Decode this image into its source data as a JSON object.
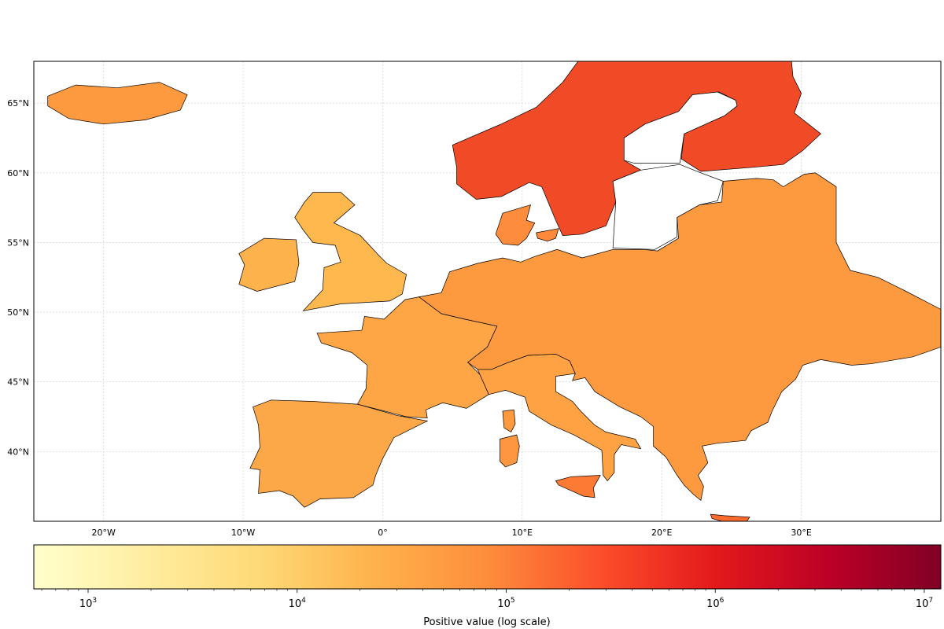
{
  "map": {
    "type": "choropleth-grid",
    "region": "Europe",
    "lon_range": [
      -25,
      40
    ],
    "lat_range": [
      35,
      68
    ],
    "lon_ticks": [
      {
        "value": -20,
        "label": "20°W"
      },
      {
        "value": -10,
        "label": "10°W"
      },
      {
        "value": 0,
        "label": "0°"
      },
      {
        "value": 10,
        "label": "10°E"
      },
      {
        "value": 20,
        "label": "20°E"
      },
      {
        "value": 30,
        "label": "30°E"
      }
    ],
    "lat_ticks": [
      {
        "value": 40,
        "label": "40°N"
      },
      {
        "value": 45,
        "label": "45°N"
      },
      {
        "value": 50,
        "label": "50°N"
      },
      {
        "value": 55,
        "label": "55°N"
      },
      {
        "value": 60,
        "label": "60°N"
      },
      {
        "value": 65,
        "label": "65°N"
      }
    ],
    "grid": true,
    "colormap": "YlOrRd",
    "color_stops": [
      "#ffffcc",
      "#ffeda0",
      "#fed976",
      "#feb24c",
      "#fd8d3c",
      "#fc4e2a",
      "#e31a1c",
      "#bd0026",
      "#800026"
    ]
  },
  "colorbar": {
    "label": "Positive value (log scale)",
    "scale": "log",
    "range": [
      550,
      12000000
    ],
    "ticks": [
      {
        "value": 1000,
        "base": "10",
        "exp": "3"
      },
      {
        "value": 10000,
        "base": "10",
        "exp": "4"
      },
      {
        "value": 100000,
        "base": "10",
        "exp": "5"
      },
      {
        "value": 1000000,
        "base": "10",
        "exp": "6"
      },
      {
        "value": 10000000,
        "base": "10",
        "exp": "7"
      }
    ]
  },
  "regions": [
    {
      "name": "iceland",
      "color": "#fd9a40",
      "outline": [
        [
          -24,
          65.5
        ],
        [
          -22,
          66.3
        ],
        [
          -19,
          66.1
        ],
        [
          -16,
          66.5
        ],
        [
          -14,
          65.6
        ],
        [
          -14.5,
          64.5
        ],
        [
          -17,
          63.8
        ],
        [
          -20,
          63.5
        ],
        [
          -22.5,
          63.9
        ],
        [
          -24,
          64.8
        ]
      ]
    },
    {
      "name": "ireland",
      "color": "#feb24c",
      "outline": [
        [
          -10.3,
          54.2
        ],
        [
          -8.5,
          55.3
        ],
        [
          -6.2,
          55.2
        ],
        [
          -6,
          53.5
        ],
        [
          -6.3,
          52.2
        ],
        [
          -9,
          51.5
        ],
        [
          -10.3,
          52
        ],
        [
          -9.9,
          53.4
        ]
      ]
    },
    {
      "name": "great-britain",
      "color": "#feb84e",
      "outline": [
        [
          -5,
          58.6
        ],
        [
          -3,
          58.6
        ],
        [
          -2,
          57.7
        ],
        [
          -3.5,
          56.4
        ],
        [
          -1.6,
          55.5
        ],
        [
          -0.2,
          54
        ],
        [
          0.3,
          53.5
        ],
        [
          1.7,
          52.7
        ],
        [
          1.4,
          51.3
        ],
        [
          0.5,
          50.8
        ],
        [
          -3,
          50.6
        ],
        [
          -5.7,
          50.1
        ],
        [
          -4.3,
          51.6
        ],
        [
          -4.2,
          53.2
        ],
        [
          -3,
          53.6
        ],
        [
          -3.4,
          54.8
        ],
        [
          -5,
          55
        ],
        [
          -5.7,
          55.9
        ],
        [
          -6.3,
          56.8
        ],
        [
          -5.6,
          57.9
        ]
      ]
    },
    {
      "name": "iberia",
      "color": "#fda848",
      "outline": [
        [
          -9.3,
          43.2
        ],
        [
          -8,
          43.7
        ],
        [
          -5,
          43.6
        ],
        [
          -1.8,
          43.4
        ],
        [
          1,
          42.6
        ],
        [
          3.2,
          42.2
        ],
        [
          0.8,
          41
        ],
        [
          0,
          39.5
        ],
        [
          -0.5,
          38.3
        ],
        [
          -0.7,
          37.6
        ],
        [
          -2.1,
          36.7
        ],
        [
          -4.5,
          36.6
        ],
        [
          -5.6,
          36
        ],
        [
          -6.4,
          36.8
        ],
        [
          -7.4,
          37.2
        ],
        [
          -8.9,
          37
        ],
        [
          -8.8,
          38.7
        ],
        [
          -9.5,
          38.8
        ],
        [
          -8.8,
          40.3
        ],
        [
          -8.9,
          41.9
        ]
      ]
    },
    {
      "name": "france",
      "color": "#fea546",
      "outline": [
        [
          -4.7,
          48.5
        ],
        [
          -1.5,
          48.7
        ],
        [
          -1.3,
          49.7
        ],
        [
          0.1,
          49.5
        ],
        [
          1.6,
          50.9
        ],
        [
          2.6,
          51.1
        ],
        [
          4.2,
          49.9
        ],
        [
          5.9,
          49.5
        ],
        [
          8.2,
          49
        ],
        [
          7.5,
          47.5
        ],
        [
          6.1,
          46.4
        ],
        [
          7,
          45.5
        ],
        [
          7.6,
          44.1
        ],
        [
          6,
          43.1
        ],
        [
          4.3,
          43.5
        ],
        [
          3.1,
          43
        ],
        [
          3.2,
          42.4
        ],
        [
          1.7,
          42.5
        ],
        [
          -1.8,
          43.4
        ],
        [
          -1.2,
          44.5
        ],
        [
          -1.1,
          46.2
        ],
        [
          -2.2,
          47.1
        ],
        [
          -4.4,
          47.8
        ]
      ]
    },
    {
      "name": "italy",
      "color": "#fea243",
      "outline": [
        [
          6.8,
          45.9
        ],
        [
          7.6,
          44.1
        ],
        [
          8.8,
          44.4
        ],
        [
          10.2,
          43.9
        ],
        [
          10.5,
          42.9
        ],
        [
          12.1,
          41.9
        ],
        [
          13.7,
          41.2
        ],
        [
          15.7,
          40.1
        ],
        [
          15.8,
          38.3
        ],
        [
          16.1,
          37.9
        ],
        [
          16.6,
          38.5
        ],
        [
          16.6,
          39.8
        ],
        [
          17.1,
          40.5
        ],
        [
          18.5,
          40.2
        ],
        [
          18.1,
          40.9
        ],
        [
          16,
          41.4
        ],
        [
          15.2,
          41.9
        ],
        [
          14.2,
          42.9
        ],
        [
          13.6,
          43.6
        ],
        [
          12.4,
          44.3
        ],
        [
          12.4,
          45.4
        ],
        [
          13.8,
          45.6
        ],
        [
          13.4,
          46.5
        ],
        [
          12.4,
          47
        ],
        [
          10.4,
          46.9
        ],
        [
          9,
          46.4
        ],
        [
          7.8,
          45.9
        ]
      ]
    },
    {
      "name": "sicily",
      "color": "#fc7a33",
      "outline": [
        [
          12.4,
          37.9
        ],
        [
          13.5,
          38.2
        ],
        [
          15.6,
          38.3
        ],
        [
          15.1,
          37.4
        ],
        [
          15.2,
          36.7
        ],
        [
          14.4,
          36.8
        ],
        [
          12.6,
          37.6
        ]
      ]
    },
    {
      "name": "sardinia",
      "color": "#fd9640",
      "outline": [
        [
          8.4,
          40.9
        ],
        [
          9.6,
          41.2
        ],
        [
          9.8,
          40.4
        ],
        [
          9.6,
          39.2
        ],
        [
          8.8,
          38.9
        ],
        [
          8.4,
          39.3
        ],
        [
          8.4,
          40.3
        ]
      ]
    },
    {
      "name": "corsica",
      "color": "#fd9a40",
      "outline": [
        [
          8.6,
          42.9
        ],
        [
          9.4,
          43
        ],
        [
          9.5,
          42
        ],
        [
          9.2,
          41.4
        ],
        [
          8.7,
          41.7
        ]
      ]
    },
    {
      "name": "central-eastern-europe",
      "color": "#fd9a40",
      "outline": [
        [
          2.6,
          51.1
        ],
        [
          4.2,
          51.4
        ],
        [
          4.8,
          52.9
        ],
        [
          6.8,
          53.5
        ],
        [
          8.6,
          53.9
        ],
        [
          9.9,
          53.6
        ],
        [
          10.9,
          54
        ],
        [
          12.5,
          54.5
        ],
        [
          14.3,
          53.9
        ],
        [
          16.5,
          54.5
        ],
        [
          18.7,
          54.5
        ],
        [
          19.7,
          54.4
        ],
        [
          21.2,
          55.3
        ],
        [
          21.1,
          56.8
        ],
        [
          22.7,
          57.7
        ],
        [
          24.3,
          57.9
        ],
        [
          24.4,
          59.4
        ],
        [
          26.8,
          59.6
        ],
        [
          28,
          59.5
        ],
        [
          28.7,
          59
        ],
        [
          30.2,
          59.9
        ],
        [
          31,
          60
        ],
        [
          32.5,
          59
        ],
        [
          32.5,
          55
        ],
        [
          33.5,
          53
        ],
        [
          35.5,
          52.5
        ],
        [
          37.5,
          51.5
        ],
        [
          40,
          50.2
        ],
        [
          40,
          47.5
        ],
        [
          38,
          46.8
        ],
        [
          35,
          46.3
        ],
        [
          33.6,
          46.2
        ],
        [
          31.4,
          46.6
        ],
        [
          30.1,
          46.2
        ],
        [
          29.6,
          45.2
        ],
        [
          28.6,
          44.3
        ],
        [
          27.9,
          42.9
        ],
        [
          27.6,
          42.1
        ],
        [
          26.4,
          41.5
        ],
        [
          26,
          40.8
        ],
        [
          24,
          40.6
        ],
        [
          22.9,
          40.4
        ],
        [
          23.3,
          39.2
        ],
        [
          22.6,
          38.3
        ],
        [
          23,
          37.5
        ],
        [
          22.8,
          36.5
        ],
        [
          22.3,
          36.9
        ],
        [
          21.6,
          37.6
        ],
        [
          21.1,
          38.3
        ],
        [
          20.3,
          39.6
        ],
        [
          19.4,
          40.4
        ],
        [
          19.4,
          41.8
        ],
        [
          18.5,
          42.5
        ],
        [
          17,
          43.2
        ],
        [
          15.2,
          44.3
        ],
        [
          14.5,
          45.3
        ],
        [
          13.6,
          45.1
        ],
        [
          13.8,
          45.6
        ],
        [
          13.4,
          46.5
        ],
        [
          12.4,
          47
        ],
        [
          10.4,
          46.9
        ],
        [
          9,
          46.4
        ],
        [
          7.8,
          45.9
        ],
        [
          6.8,
          45.9
        ],
        [
          6.1,
          46.4
        ],
        [
          7.5,
          47.5
        ],
        [
          8.2,
          49
        ],
        [
          5.9,
          49.5
        ],
        [
          4.2,
          49.9
        ]
      ]
    },
    {
      "name": "crete",
      "color": "#fc6b2d",
      "outline": [
        [
          23.5,
          35.5
        ],
        [
          24.5,
          35.4
        ],
        [
          26.3,
          35.3
        ],
        [
          26.1,
          35
        ],
        [
          24.7,
          34.9
        ],
        [
          23.6,
          35.2
        ]
      ]
    },
    {
      "name": "denmark",
      "color": "#fd8d3c",
      "outline": [
        [
          8.1,
          55.6
        ],
        [
          8.6,
          57.1
        ],
        [
          10.6,
          57.7
        ],
        [
          10.3,
          56.6
        ],
        [
          10.9,
          56.4
        ],
        [
          10.3,
          55.3
        ],
        [
          9.7,
          54.8
        ],
        [
          8.6,
          54.9
        ]
      ]
    },
    {
      "name": "zealand",
      "color": "#fc8a3a",
      "outline": [
        [
          11,
          55.7
        ],
        [
          12.6,
          56
        ],
        [
          12.4,
          55.3
        ],
        [
          11.8,
          55.1
        ],
        [
          11.1,
          55.3
        ]
      ]
    },
    {
      "name": "scandinavia",
      "color": "#f14a27",
      "outline": [
        [
          5,
          62
        ],
        [
          5.3,
          60.4
        ],
        [
          5.3,
          59.2
        ],
        [
          6.7,
          58.1
        ],
        [
          8.5,
          58.3
        ],
        [
          10.5,
          59.3
        ],
        [
          11.4,
          59
        ],
        [
          12.4,
          56.6
        ],
        [
          12.9,
          55.5
        ],
        [
          14.3,
          55.6
        ],
        [
          16,
          56.2
        ],
        [
          16.7,
          57.9
        ],
        [
          16.5,
          59.4
        ],
        [
          18.5,
          60.2
        ],
        [
          17.3,
          60.9
        ],
        [
          17.3,
          62.5
        ],
        [
          18.8,
          63.5
        ],
        [
          21.2,
          64.4
        ],
        [
          22.2,
          65.6
        ],
        [
          24.1,
          65.8
        ],
        [
          25.3,
          65.2
        ],
        [
          25.4,
          64.8
        ],
        [
          24.5,
          64.1
        ],
        [
          21.6,
          62.8
        ],
        [
          21.4,
          61
        ],
        [
          22.8,
          60.1
        ],
        [
          26.6,
          60.4
        ],
        [
          28.7,
          60.6
        ],
        [
          30.1,
          61.6
        ],
        [
          31.4,
          62.8
        ],
        [
          29.5,
          64.3
        ],
        [
          30,
          65.7
        ],
        [
          29.4,
          66.9
        ],
        [
          29.3,
          68
        ],
        [
          5.5,
          68
        ],
        [
          11.6,
          68
        ],
        [
          14,
          68
        ],
        [
          12.9,
          66.5
        ],
        [
          11,
          64.7
        ],
        [
          8.5,
          63.5
        ]
      ]
    }
  ],
  "water_patches": [
    {
      "name": "gulf-of-bothnia",
      "outline": [
        [
          18,
          60.7
        ],
        [
          21.3,
          60.7
        ],
        [
          21.6,
          62.8
        ],
        [
          24.5,
          64.1
        ],
        [
          25.4,
          64.8
        ],
        [
          25.3,
          65.2
        ],
        [
          24,
          65.8
        ],
        [
          22.2,
          65.6
        ],
        [
          21.2,
          64.4
        ],
        [
          18.8,
          63.5
        ],
        [
          17.3,
          62.5
        ],
        [
          17.3,
          60.9
        ]
      ]
    },
    {
      "name": "baltic-sea",
      "outline": [
        [
          16.5,
          54.6
        ],
        [
          19.5,
          54.5
        ],
        [
          21.1,
          55.4
        ],
        [
          21.1,
          56.8
        ],
        [
          22.7,
          57.7
        ],
        [
          24,
          58
        ],
        [
          24.4,
          59.4
        ],
        [
          22.8,
          60
        ],
        [
          21.3,
          60.6
        ],
        [
          18.5,
          60.2
        ],
        [
          16.5,
          59.4
        ],
        [
          16.7,
          57.9
        ]
      ]
    }
  ]
}
